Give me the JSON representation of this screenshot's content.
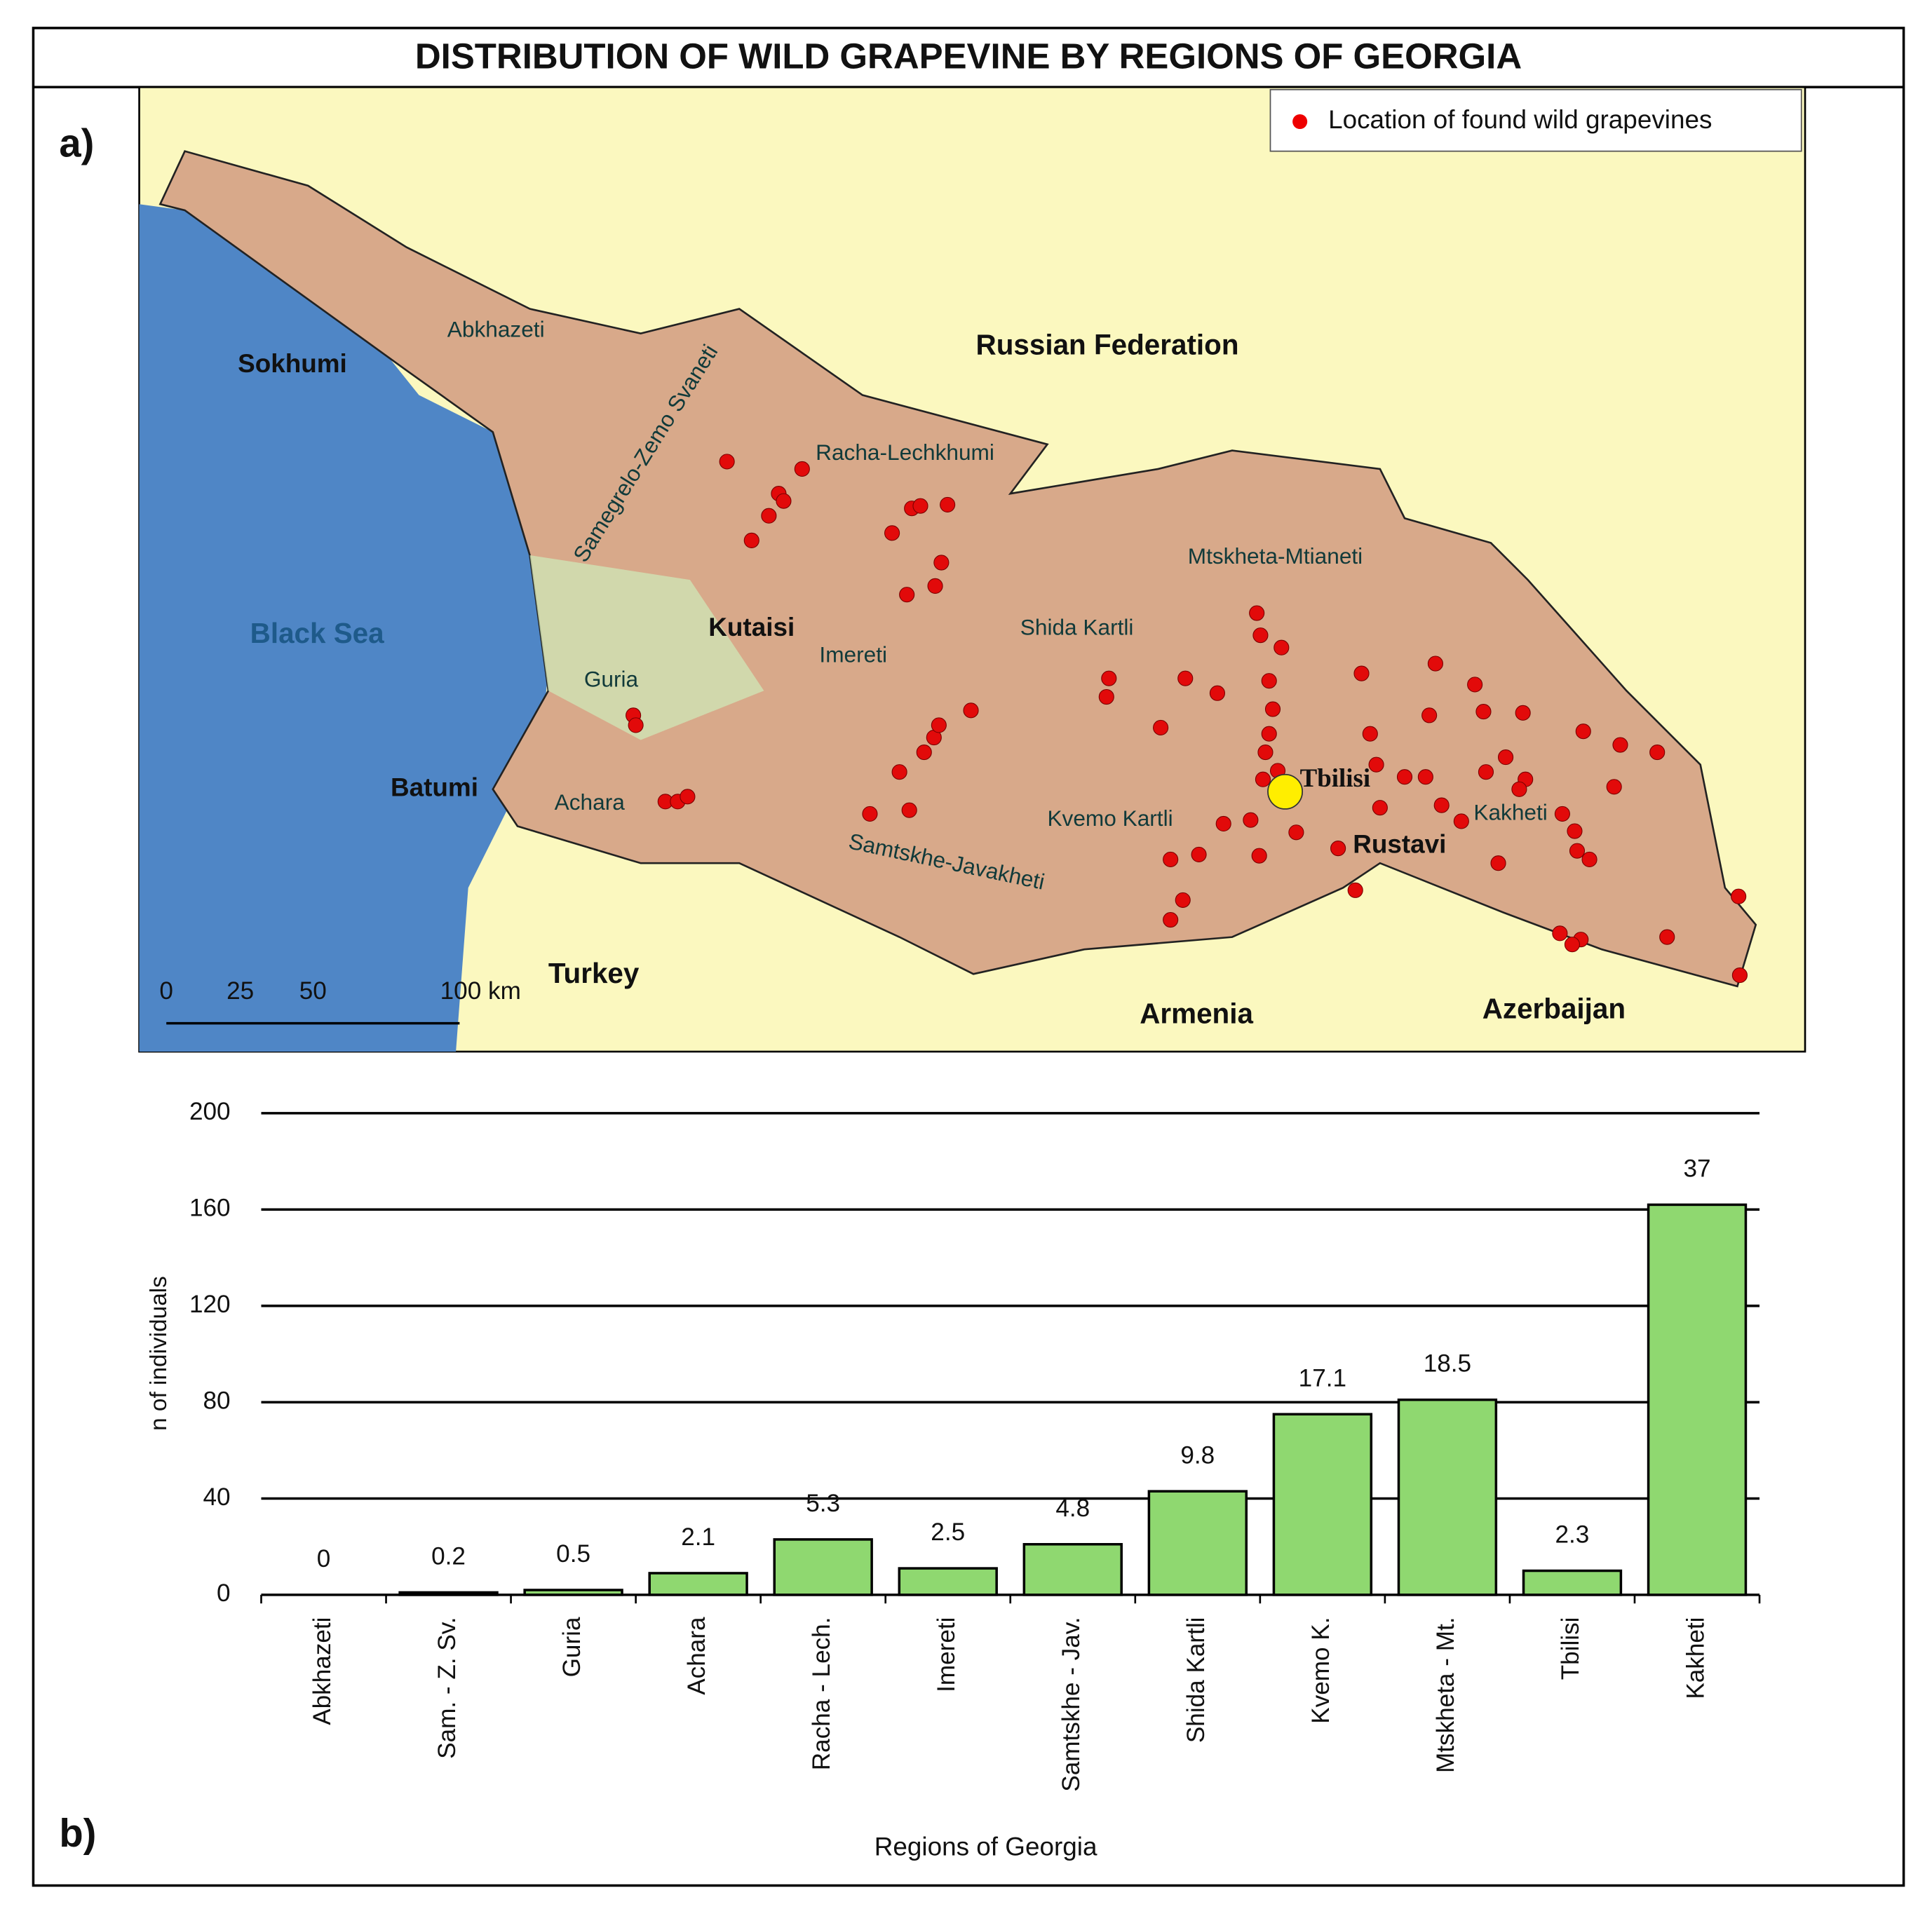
{
  "title": "DISTRIBUTION OF WILD GRAPEVINE BY REGIONS OF GEORGIA",
  "map": {
    "panel_label": "a)",
    "legend": "Location of found wild grapevines",
    "labels": [
      "Sokhumi",
      "Abkhazeti",
      "Samegrelo-Zemo Svaneti",
      "Racha-Lechkhumi",
      "Russian Federation",
      "Black Sea",
      "Kutaisi",
      "Imereti",
      "Shida Kartli",
      "Mtskheta-Mtianeti",
      "Guria",
      "Batumi",
      "Achara",
      "Tbilisi",
      "Kakheti",
      "Kvemo Kartli",
      "Rustavi",
      "Samtskhe-Javakheti",
      "Turkey",
      "Armenia",
      "Azerbaijan"
    ],
    "scale_labels": [
      "0",
      "25",
      "50",
      "100 km"
    ]
  },
  "chart_data": {
    "type": "bar",
    "panel_label": "b)",
    "x_label": "Regions of Georgia",
    "y_label": "n of individuals",
    "categories": [
      "Abkhazeti",
      "Sam. - Z. Sv.",
      "Guria",
      "Achara",
      "Racha - Lech.",
      "Imereti",
      "Samtskhe - Jav.",
      "Shida Kartli",
      "Kvemo K.",
      "Mtskheta - Mt.",
      "Tbilisi",
      "Kakheti"
    ],
    "values": [
      0,
      1,
      2,
      9,
      23,
      11,
      21,
      43,
      75,
      81,
      10,
      162
    ],
    "percent_labels": [
      0,
      0.2,
      0.5,
      2.1,
      5.3,
      2.5,
      4.8,
      9.8,
      17.1,
      18.5,
      2.3,
      37
    ],
    "color": "#8fd870",
    "ylim": [
      0,
      200
    ],
    "yticks": [
      0,
      40,
      80,
      120,
      160,
      200
    ],
    "grid": true
  }
}
